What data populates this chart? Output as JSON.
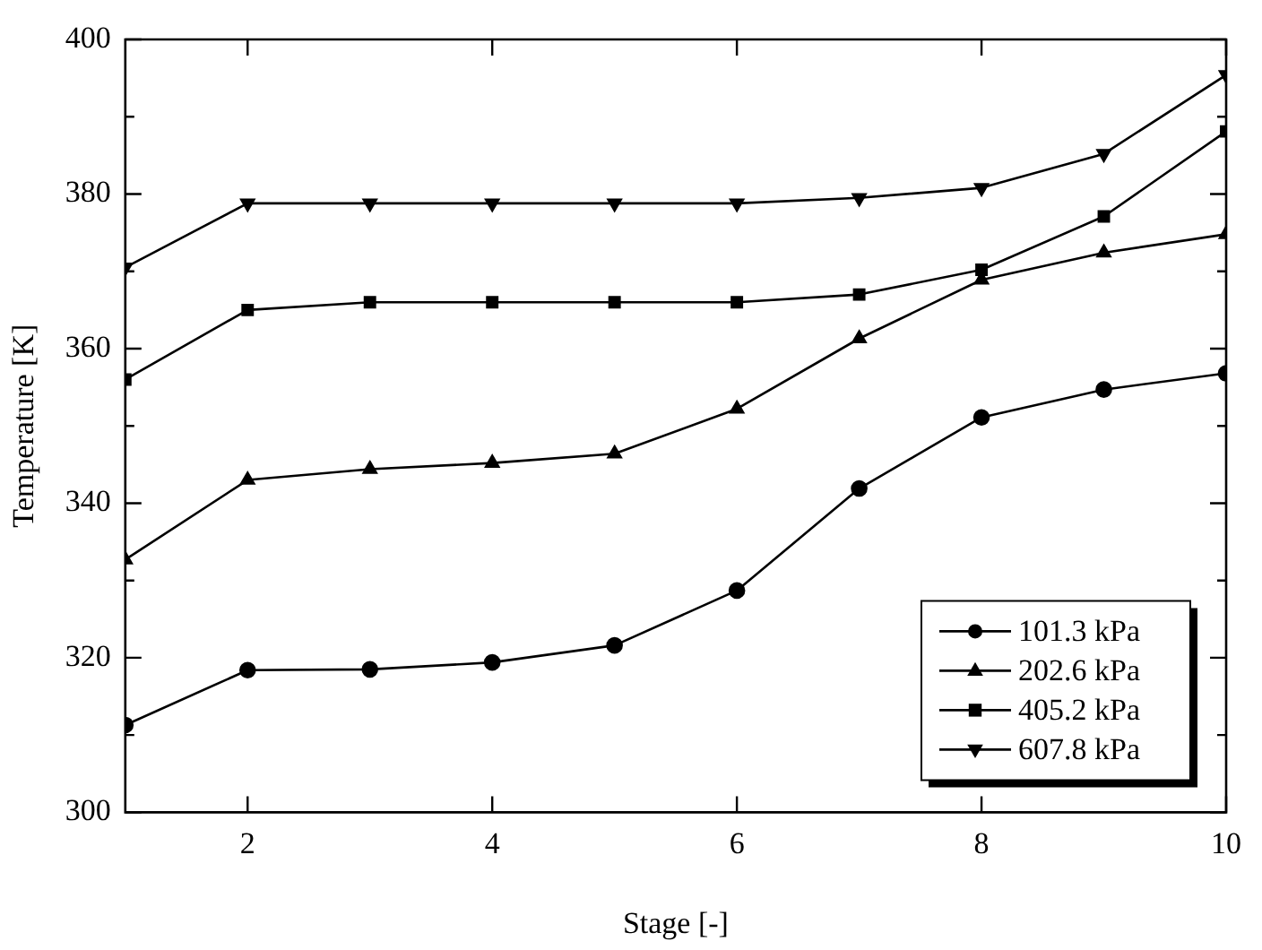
{
  "chart_data": {
    "type": "line",
    "xlabel": "Stage [-]",
    "ylabel": "Temperature [K]",
    "x": [
      1,
      2,
      3,
      4,
      5,
      6,
      7,
      8,
      9,
      10
    ],
    "xlim": [
      1,
      10
    ],
    "xticks": [
      2,
      4,
      6,
      8,
      10
    ],
    "ylim": [
      300,
      400
    ],
    "yticks": [
      300,
      {
        "value": 310,
        "label": null
      },
      320,
      {
        "value": 330,
        "label": null
      },
      340,
      {
        "value": 350,
        "label": null
      },
      360,
      {
        "value": 370,
        "label": null
      },
      380,
      {
        "value": 390,
        "label": null
      },
      400
    ],
    "grid": false,
    "legend": "bottom right",
    "line_style": "solid",
    "series": [
      {
        "name": "101.3 kPa",
        "color": "#000000",
        "marker": "circle",
        "values": [
          311.3,
          318.4,
          318.5,
          319.4,
          321.6,
          328.7,
          341.9,
          351.1,
          354.7,
          356.8
        ]
      },
      {
        "name": "202.6 kPa",
        "color": "#000000",
        "marker": "triangle",
        "values": [
          332.7,
          343.0,
          344.4,
          345.2,
          346.4,
          352.2,
          361.3,
          368.9,
          372.4,
          374.8
        ]
      },
      {
        "name": "405.2 kPa",
        "color": "#000000",
        "marker": "square",
        "values": [
          356.0,
          365.0,
          366.0,
          366.0,
          366.0,
          366.0,
          367.0,
          370.2,
          377.1,
          388.1
        ]
      },
      {
        "name": "607.8 kPa",
        "color": "#000000",
        "marker": "triangle-down",
        "values": [
          370.5,
          378.8,
          378.8,
          378.8,
          378.8,
          378.8,
          379.5,
          380.8,
          385.2,
          395.4
        ]
      }
    ]
  }
}
